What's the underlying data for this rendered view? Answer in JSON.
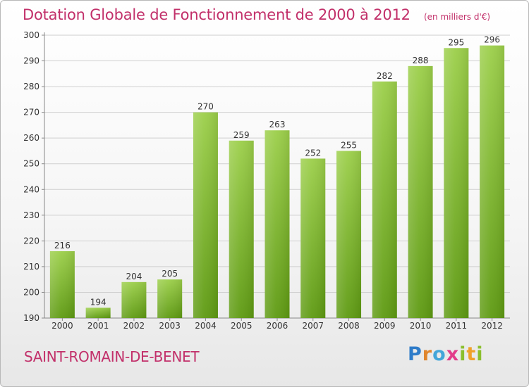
{
  "header": {
    "title": "Dotation Globale de Fonctionnement de 2000 à 2012",
    "subtitle": "(en milliers d'€)"
  },
  "footer": {
    "commune": "SAINT-ROMAIN-DE-BENET",
    "logo_text": "Proxiti"
  },
  "colors": {
    "title": "#c2306a",
    "bar_top": "#9ccf4a",
    "bar_bottom": "#5e9a12",
    "grid": "#cfcfcf"
  },
  "chart_data": {
    "type": "bar",
    "categories": [
      "2000",
      "2001",
      "2002",
      "2003",
      "2004",
      "2005",
      "2006",
      "2007",
      "2008",
      "2009",
      "2010",
      "2011",
      "2012"
    ],
    "values": [
      216,
      194,
      204,
      205,
      270,
      259,
      263,
      252,
      255,
      282,
      288,
      295,
      296
    ],
    "value_labels": [
      "216",
      "194",
      "204",
      "205",
      "270",
      "259",
      "263",
      "252",
      "255",
      "282",
      "288",
      "295",
      "296"
    ],
    "yticks": [
      "190",
      "200",
      "210",
      "220",
      "230",
      "240",
      "250",
      "260",
      "270",
      "280",
      "290",
      "300"
    ],
    "ylim": [
      190,
      300
    ],
    "title": "Dotation Globale de Fonctionnement de 2000 à 2012",
    "xlabel": "",
    "ylabel": "",
    "grid": true,
    "legend": "none"
  }
}
